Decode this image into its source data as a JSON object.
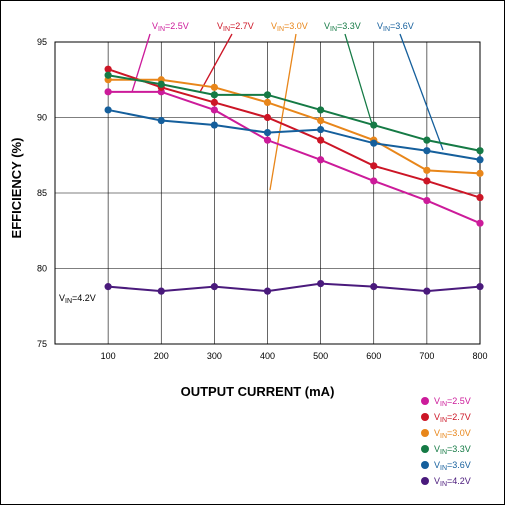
{
  "chart_data": {
    "type": "line",
    "xlabel": "OUTPUT CURRENT (mA)",
    "ylabel": "EFFICIENCY (%)",
    "xlim": [
      0,
      800
    ],
    "ylim": [
      75,
      95
    ],
    "x": [
      100,
      200,
      300,
      400,
      500,
      600,
      700,
      800
    ],
    "x_ticks": [
      "100",
      "200",
      "300",
      "400",
      "500",
      "600",
      "700",
      "800"
    ],
    "y_ticks": [
      "75",
      "80",
      "85",
      "90",
      "95"
    ],
    "grid": true,
    "legend_position": "bottom-right",
    "series": [
      {
        "name": "VIN=2.5V",
        "color": "#cc1b9a",
        "values": [
          91.7,
          91.7,
          90.5,
          88.5,
          87.2,
          85.8,
          84.5,
          83.0
        ]
      },
      {
        "name": "VIN=2.7V",
        "color": "#cc1526",
        "values": [
          93.2,
          92.0,
          91.0,
          90.0,
          88.5,
          86.8,
          85.8,
          84.7
        ]
      },
      {
        "name": "VIN=3.0V",
        "color": "#e8861a",
        "values": [
          92.5,
          92.5,
          92.0,
          91.0,
          89.8,
          88.5,
          86.5,
          86.3
        ]
      },
      {
        "name": "VIN=3.3V",
        "color": "#157a45",
        "values": [
          92.8,
          92.2,
          91.5,
          91.5,
          90.5,
          89.5,
          88.5,
          87.8
        ]
      },
      {
        "name": "VIN=3.6V",
        "color": "#155f9c",
        "values": [
          90.5,
          89.8,
          89.5,
          89.0,
          89.2,
          88.3,
          87.8,
          87.2
        ]
      },
      {
        "name": "VIN=4.2V",
        "color": "#4a1a7c",
        "values": [
          78.8,
          78.5,
          78.8,
          78.5,
          79.0,
          78.8,
          78.5,
          78.8
        ]
      }
    ],
    "annotations": [
      {
        "series": 0,
        "text_main": "V",
        "text_sub": "IN",
        "text_rest": "=2.5V",
        "color": "#cc1b9a"
      },
      {
        "series": 1,
        "text_main": "V",
        "text_sub": "IN",
        "text_rest": "=2.7V",
        "color": "#cc1526"
      },
      {
        "series": 2,
        "text_main": "V",
        "text_sub": "IN",
        "text_rest": "=3.0V",
        "color": "#e8861a"
      },
      {
        "series": 3,
        "text_main": "V",
        "text_sub": "IN",
        "text_rest": "=3.3V",
        "color": "#157a45"
      },
      {
        "series": 4,
        "text_main": "V",
        "text_sub": "IN",
        "text_rest": "=3.6V",
        "color": "#155f9c"
      },
      {
        "series": 5,
        "text_main": "V",
        "text_sub": "IN",
        "text_rest": "=4.2V",
        "color": "#000000"
      }
    ]
  }
}
